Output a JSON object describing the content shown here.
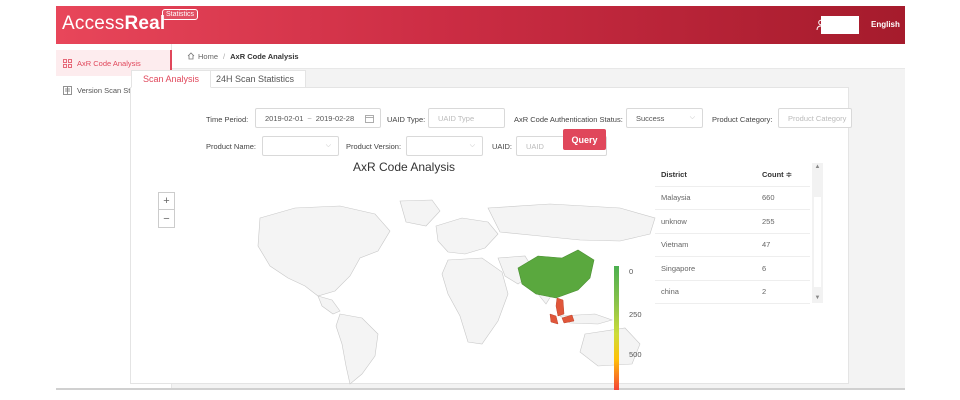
{
  "header": {
    "logo_light": "Access",
    "logo_bold": "Real",
    "logo_tag": "Statistics",
    "language": "English"
  },
  "sidebar": {
    "items": [
      {
        "label": "AxR Code Analysis",
        "icon": "grid-icon",
        "active": true
      },
      {
        "label": "Version Scan Statistics",
        "icon": "list-icon",
        "active": false
      }
    ]
  },
  "breadcrumb": {
    "home": "Home",
    "separator": "/",
    "current": "AxR Code Analysis"
  },
  "tabs": [
    {
      "label": "Scan Analysis"
    },
    {
      "label": "24H Scan Statistics"
    }
  ],
  "filters": {
    "time_period_label": "Time Period:",
    "date_start": "2019-02-01",
    "date_sep": "~",
    "date_end": "2019-02-28",
    "uaid_type_label": "UAID Type:",
    "uaid_type_placeholder": "UAID Type",
    "auth_status_label": "AxR Code Authentication Status:",
    "auth_status_value": "Success",
    "product_category_label": "Product Category:",
    "product_category_placeholder": "Product Category",
    "product_name_label": "Product Name:",
    "product_name_value": "",
    "product_version_label": "Product Version:",
    "product_version_value": "",
    "uaid_label": "UAID:",
    "uaid_placeholder": "UAID",
    "query_label": "Query"
  },
  "map": {
    "title": "AxR Code Analysis",
    "zoom_in": "+",
    "zoom_out": "−",
    "legend_ticks": [
      "0",
      "250",
      "500"
    ],
    "colors": {
      "china": "#5aa83e",
      "southeast_asia": "#e0563a",
      "land": "#f4f4f4",
      "border": "#c8c8c8"
    }
  },
  "table": {
    "columns": [
      "District",
      "Count ≑"
    ],
    "rows": [
      {
        "district": "Malaysia",
        "count": "660"
      },
      {
        "district": "unknow",
        "count": "255"
      },
      {
        "district": "Vietnam",
        "count": "47"
      },
      {
        "district": "Singapore",
        "count": "6"
      },
      {
        "district": "china",
        "count": "2"
      }
    ]
  }
}
